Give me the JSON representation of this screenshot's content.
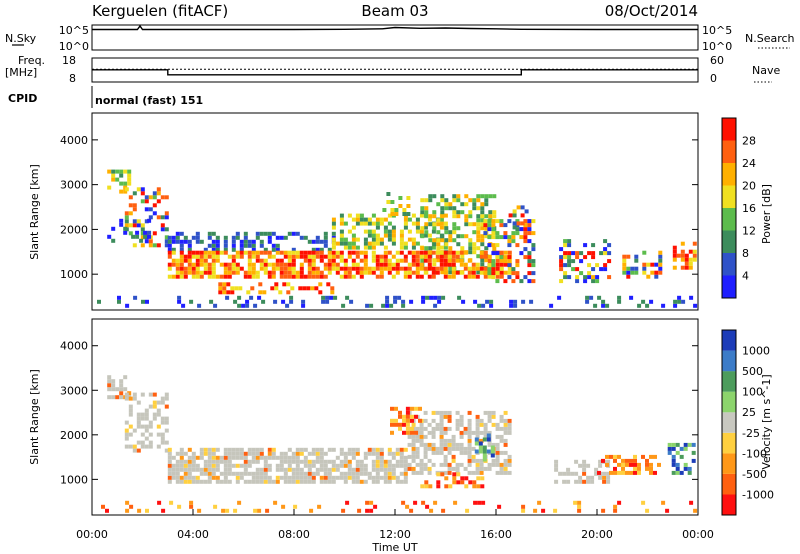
{
  "header": {
    "station": "Kerguelen (fitACF)",
    "beam": "Beam 03",
    "date": "08/Oct/2014"
  },
  "colors": {
    "power_scale": [
      "#1f1fff",
      "#2f52c8",
      "#3c8c5c",
      "#5cbc4c",
      "#f0e020",
      "#ffb000",
      "#ff6010",
      "#ff1000"
    ],
    "velocity_scale": [
      "#1c3cb8",
      "#3c7cc8",
      "#4c9c5c",
      "#8cd46c",
      "#c8c8c0",
      "#ffd040",
      "#ff9818",
      "#ff6010",
      "#ff1010"
    ],
    "ground_scatter": "#c6c6bc"
  },
  "chart_data": [
    {
      "id": "nsky",
      "type": "line",
      "left_label": "N.Sky",
      "right_label": "N.Search",
      "y_tick_labels": [
        "10^5",
        "10^0"
      ],
      "right_tick_labels": [
        "10^5",
        "10^0"
      ],
      "ylim": [
        0,
        5
      ],
      "y_scale": "log",
      "x": [
        0,
        1.8,
        1.9,
        2.0,
        2.5,
        4,
        8,
        10,
        11.5,
        12,
        13,
        14,
        15,
        16,
        17,
        20,
        24
      ],
      "values": [
        4.1,
        4.1,
        4.8,
        4.1,
        4.1,
        4.1,
        4.1,
        4.15,
        4.25,
        4.5,
        4.35,
        4.4,
        4.3,
        4.25,
        4.15,
        4.1,
        4.1
      ]
    },
    {
      "id": "freq",
      "type": "line",
      "left_label": "Freq.",
      "left_unit": "[MHz]",
      "right_label": "Nave",
      "y_tick_labels": [
        "18",
        "8"
      ],
      "right_tick_labels": [
        "60",
        "0"
      ],
      "ylim": [
        8,
        18
      ],
      "series": [
        {
          "x": [
            0,
            3.0,
            3.0,
            17.0,
            17.0,
            24
          ],
          "values": [
            13.1,
            13.1,
            11.0,
            11.0,
            13.1,
            13.1
          ]
        },
        {
          "x": [
            0,
            24
          ],
          "values": [
            13.3,
            13.3
          ],
          "style": "dotted"
        }
      ]
    },
    {
      "id": "cpid",
      "type": "table",
      "label": "CPID",
      "mode": "normal (fast) 151"
    },
    {
      "id": "power",
      "type": "heatmap",
      "ylabel": "Slant Range [km]",
      "ylim": [
        200,
        4600
      ],
      "y_ticks": [
        1000,
        2000,
        3000,
        4000
      ],
      "colorbar_label": "Power [dB]",
      "colorbar_ticks": [
        "28",
        "24",
        "20",
        "16",
        "12",
        "8",
        "4"
      ],
      "regions": [
        {
          "x": [
            0.6,
            1.4
          ],
          "y": [
            2800,
            3300
          ],
          "level": "medium",
          "density": 0.55
        },
        {
          "x": [
            1.3,
            3.0
          ],
          "y": [
            1600,
            2900
          ],
          "level": "mixed",
          "density": 0.4
        },
        {
          "x": [
            0.6,
            2.2
          ],
          "y": [
            1700,
            2200
          ],
          "level": "low",
          "density": 0.35
        },
        {
          "x": [
            3.0,
            9.5
          ],
          "y": [
            1500,
            1900
          ],
          "level": "low",
          "density": 0.45
        },
        {
          "x": [
            9.5,
            14.0
          ],
          "y": [
            1550,
            2300
          ],
          "level": "medium",
          "density": 0.5
        },
        {
          "x": [
            13.0,
            16.0
          ],
          "y": [
            1000,
            2700
          ],
          "level": "medium",
          "density": 0.45
        },
        {
          "x": [
            3.0,
            16.5
          ],
          "y": [
            900,
            1500
          ],
          "level": "high",
          "density": 0.75
        },
        {
          "x": [
            5.0,
            9.5
          ],
          "y": [
            550,
            800
          ],
          "level": "high",
          "density": 0.5
        },
        {
          "x": [
            15.5,
            17.5
          ],
          "y": [
            800,
            2200
          ],
          "level": "mixed",
          "density": 0.45
        },
        {
          "x": [
            16.5,
            17.2
          ],
          "y": [
            2000,
            2500
          ],
          "level": "mixed",
          "density": 0.5
        },
        {
          "x": [
            18.5,
            20.5
          ],
          "y": [
            800,
            1700
          ],
          "level": "mixed",
          "density": 0.4
        },
        {
          "x": [
            21.0,
            22.5
          ],
          "y": [
            900,
            1500
          ],
          "level": "mixed",
          "density": 0.45
        },
        {
          "x": [
            23.0,
            23.9
          ],
          "y": [
            1100,
            1700
          ],
          "level": "high",
          "density": 0.6
        },
        {
          "x": [
            11.5,
            12.5
          ],
          "y": [
            2300,
            2800
          ],
          "level": "medium",
          "density": 0.35
        },
        {
          "x": [
            0.2,
            23.9
          ],
          "y": [
            250,
            450
          ],
          "level": "low",
          "density": 0.2
        }
      ]
    },
    {
      "id": "velocity",
      "type": "heatmap",
      "ylabel": "Slant Range [km]",
      "ylim": [
        200,
        4600
      ],
      "y_ticks": [
        1000,
        2000,
        3000,
        4000
      ],
      "xlabel": "Time UT",
      "x_tick_labels": [
        "00:00",
        "04:00",
        "08:00",
        "12:00",
        "16:00",
        "20:00",
        "00:00"
      ],
      "x_ticks": [
        0,
        4,
        8,
        12,
        16,
        20,
        24
      ],
      "xlim": [
        0,
        24
      ],
      "colorbar_label": "Velocity [m s^-1]",
      "colorbar_ticks": [
        "1000",
        "500",
        "100",
        "25",
        "-25",
        "-100",
        "-500",
        "-1000"
      ],
      "regions": [
        {
          "x": [
            0.6,
            1.4
          ],
          "y": [
            2800,
            3300
          ],
          "level": "ground",
          "density": 0.5
        },
        {
          "x": [
            1.3,
            3.0
          ],
          "y": [
            1600,
            2900
          ],
          "level": "ground",
          "density": 0.4
        },
        {
          "x": [
            3.0,
            12.5
          ],
          "y": [
            900,
            1700
          ],
          "level": "ground",
          "density": 0.75
        },
        {
          "x": [
            12.5,
            16.5
          ],
          "y": [
            1100,
            2500
          ],
          "level": "ground",
          "density": 0.55
        },
        {
          "x": [
            13.0,
            15.5
          ],
          "y": [
            800,
            1100
          ],
          "level": "negative",
          "density": 0.5
        },
        {
          "x": [
            11.8,
            13.0
          ],
          "y": [
            2000,
            2600
          ],
          "level": "negative",
          "density": 0.45
        },
        {
          "x": [
            15.0,
            16.0
          ],
          "y": [
            1400,
            2000
          ],
          "level": "positive",
          "density": 0.4
        },
        {
          "x": [
            18.3,
            20.5
          ],
          "y": [
            900,
            1400
          ],
          "level": "ground",
          "density": 0.45
        },
        {
          "x": [
            20.0,
            22.5
          ],
          "y": [
            1100,
            1500
          ],
          "level": "negative",
          "density": 0.35
        },
        {
          "x": [
            22.8,
            23.9
          ],
          "y": [
            1100,
            1800
          ],
          "level": "positive",
          "density": 0.55
        },
        {
          "x": [
            0.2,
            23.9
          ],
          "y": [
            250,
            450
          ],
          "level": "negative",
          "density": 0.15
        }
      ]
    }
  ]
}
